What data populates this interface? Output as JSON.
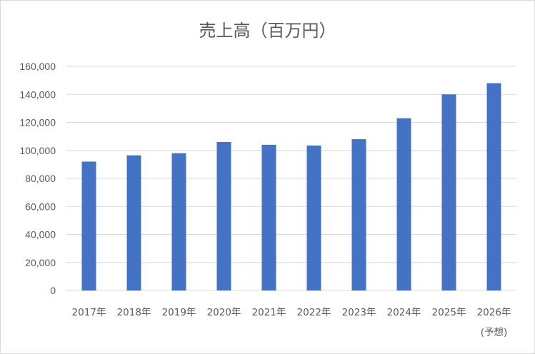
{
  "chart_data": {
    "type": "bar",
    "title": "売上高（百万円）",
    "xlabel": "",
    "ylabel": "",
    "categories": [
      "2017年",
      "2018年",
      "2019年",
      "2020年",
      "2021年",
      "2022年",
      "2023年",
      "2024年",
      "2025年",
      "2026年"
    ],
    "category_sublabels": [
      "",
      "",
      "",
      "",
      "",
      "",
      "",
      "",
      "",
      "(予想)"
    ],
    "values": [
      92000,
      96500,
      98000,
      106000,
      104000,
      103500,
      108000,
      123000,
      140000,
      148000
    ],
    "ylim": [
      0,
      160000
    ],
    "yticks": [
      "0",
      "20,000",
      "40,000",
      "60,000",
      "80,000",
      "100,000",
      "120,000",
      "140,000",
      "160,000"
    ],
    "ytick_values": [
      0,
      20000,
      40000,
      60000,
      80000,
      100000,
      120000,
      140000,
      160000
    ],
    "grid": true,
    "legend": "none",
    "bar_color": "#4472c4",
    "grid_color": "#d9d9d9",
    "text_color": "#595959"
  }
}
